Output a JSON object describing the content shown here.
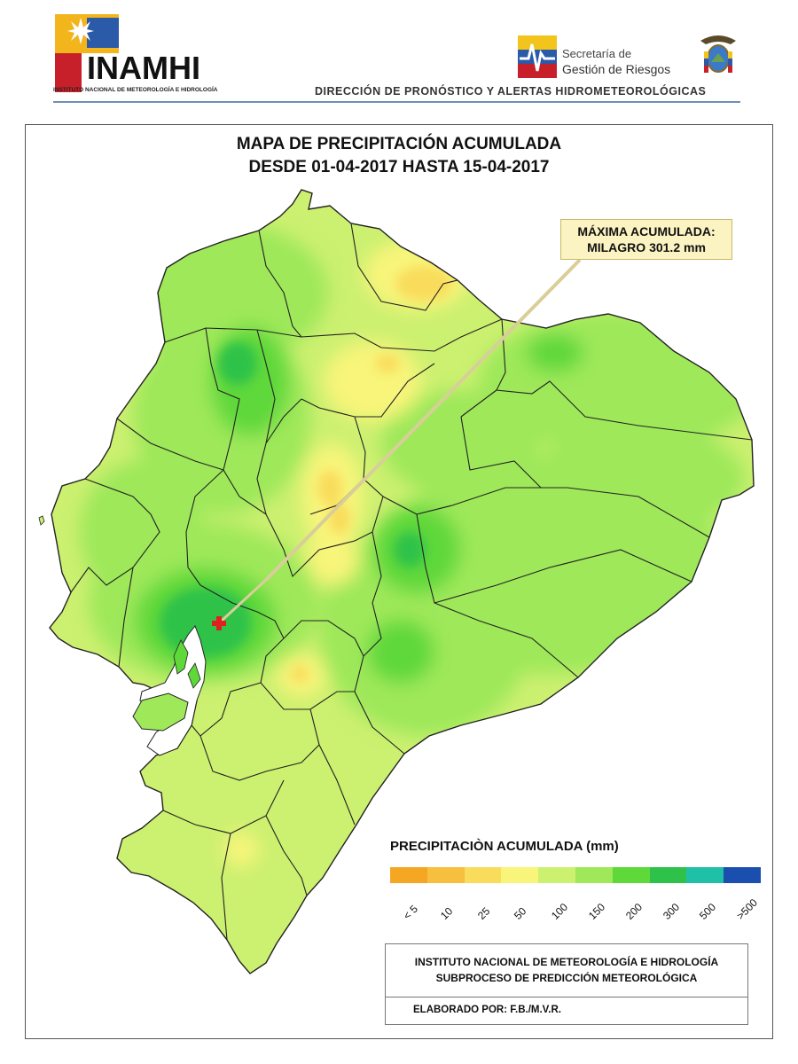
{
  "header": {
    "logo_word": "INAMHI",
    "logo_subtitle": "INSTITUTO NACIONAL DE METEOROLOGÍA E HIDROLOGÍA",
    "partner_line1": "Secretaría de",
    "partner_line2": "Gestión de Riesgos",
    "department": "DIRECCIÓN DE PRONÓSTICO Y ALERTAS HIDROMETEOROLÓGICAS"
  },
  "map": {
    "title_line1": "MAPA DE PRECIPITACIÓN ACUMULADA",
    "title_line2": "DESDE 01-04-2017 HASTA 15-04-2017",
    "callout_line1": "MÁXIMA ACUMULADA:",
    "callout_line2": "MILAGRO 301.2 mm",
    "marker_icon": "red-cross-icon"
  },
  "legend": {
    "title": "PRECIPITACIÒN ACUMULADA (mm)",
    "colors": [
      "#f5a623",
      "#f7bf3e",
      "#f9dc5c",
      "#f8f57a",
      "#ccf070",
      "#9ee85a",
      "#5fd83a",
      "#2ec24a",
      "#20c0a8",
      "#1a4fb0"
    ],
    "labels": [
      "< 5",
      "10",
      "25",
      "50",
      "100",
      "150",
      "200",
      "300",
      "500",
      ">500"
    ]
  },
  "footer": {
    "line1": "INSTITUTO NACIONAL DE METEOROLOGÍA E HIDROLOGÍA",
    "line2": "SUBPROCESO DE PREDICCIÓN METEOROLÓGICA",
    "credit": "ELABORADO POR: F.B./M.V.R."
  }
}
